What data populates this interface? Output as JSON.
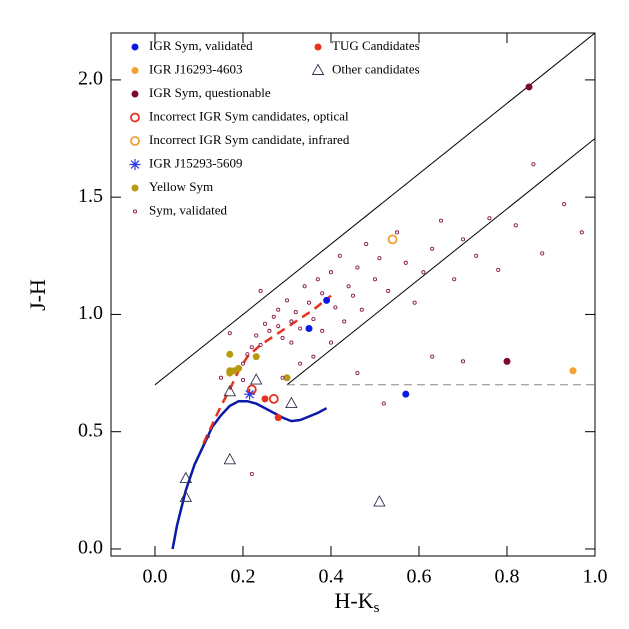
{
  "chart_data": {
    "type": "scatter",
    "x_label": "H-K",
    "x_label_subscript": "s",
    "y_label": "J-H",
    "xlim": [
      -0.1,
      1.0
    ],
    "ylim": [
      -0.03,
      2.2
    ],
    "xticks": [
      {
        "value": 0,
        "label": "0.0"
      },
      0.2,
      0.4,
      0.6,
      0.8,
      {
        "value": 1,
        "label": "1.0"
      }
    ],
    "yticks": [
      {
        "value": 0,
        "label": "0.0"
      },
      0.5,
      {
        "value": 1,
        "label": "1.0"
      },
      1.5,
      {
        "value": 2,
        "label": "2.0"
      }
    ],
    "reference_lines": [
      {
        "color": "#000000",
        "dash": false,
        "x": [
          0.0,
          1.0
        ],
        "y": [
          0.7,
          2.2
        ]
      },
      {
        "color": "#000000",
        "dash": false,
        "x": [
          0.3,
          1.0
        ],
        "y": [
          0.7,
          1.75
        ]
      },
      {
        "color": "#888888",
        "dash": true,
        "x": [
          0.3,
          1.0
        ],
        "y": [
          0.7,
          0.7
        ]
      }
    ],
    "curves": [
      {
        "color": "#0a1aa8",
        "dash": false,
        "x": [
          0.04,
          0.05,
          0.07,
          0.09,
          0.11,
          0.13,
          0.15,
          0.17,
          0.19,
          0.21,
          0.23,
          0.25,
          0.27,
          0.29,
          0.31,
          0.33,
          0.35,
          0.37,
          0.39
        ],
        "y": [
          0.0,
          0.1,
          0.25,
          0.36,
          0.44,
          0.52,
          0.57,
          0.61,
          0.63,
          0.63,
          0.62,
          0.6,
          0.58,
          0.56,
          0.545,
          0.55,
          0.565,
          0.58,
          0.6
        ]
      },
      {
        "color": "#e8321e",
        "dash": true,
        "x": [
          0.11,
          0.13,
          0.15,
          0.17,
          0.19,
          0.21,
          0.24,
          0.28,
          0.32,
          0.36,
          0.4
        ],
        "y": [
          0.45,
          0.53,
          0.61,
          0.68,
          0.76,
          0.82,
          0.87,
          0.92,
          0.97,
          1.02,
          1.08
        ]
      }
    ],
    "series": [
      {
        "name": "IGR Sym, validated",
        "color": "#0a1ae0",
        "marker": "dot",
        "x": [
          0.35,
          0.39,
          0.57
        ],
        "y": [
          0.94,
          1.06,
          0.66
        ]
      },
      {
        "name": "IGR J16293-4603",
        "color": "#f5a030",
        "marker": "dot",
        "x": [
          0.95
        ],
        "y": [
          0.76
        ]
      },
      {
        "name": "IGR Sym, questionable",
        "color": "#7a0a28",
        "marker": "dot",
        "x": [
          0.85,
          0.8
        ],
        "y": [
          1.97,
          0.8
        ]
      },
      {
        "name": "Incorrect IGR Sym candidates, optical",
        "color": "#e8321e",
        "marker": "ring",
        "x": [
          0.27,
          0.22
        ],
        "y": [
          0.64,
          0.68
        ]
      },
      {
        "name": "Incorrect IGR Sym candidate, infrared",
        "color": "#f0a030",
        "marker": "ring",
        "x": [
          0.54
        ],
        "y": [
          1.32
        ]
      },
      {
        "name": "IGR J15293-5609",
        "color": "#2a3ae0",
        "marker": "asterisk",
        "x": [
          0.215
        ],
        "y": [
          0.66
        ]
      },
      {
        "name": "Yellow Sym",
        "color": "#b89a10",
        "marker": "dot",
        "x": [
          0.17,
          0.17,
          0.17,
          0.18,
          0.23,
          0.3,
          0.19
        ],
        "y": [
          0.83,
          0.76,
          0.75,
          0.76,
          0.82,
          0.73,
          0.77
        ]
      },
      {
        "name": "Sym, validated",
        "color": "#8a1a50",
        "marker": "small-ring",
        "x": [
          0.17,
          0.2,
          0.21,
          0.22,
          0.23,
          0.24,
          0.25,
          0.26,
          0.27,
          0.28,
          0.28,
          0.29,
          0.3,
          0.31,
          0.31,
          0.32,
          0.33,
          0.34,
          0.35,
          0.36,
          0.37,
          0.38,
          0.38,
          0.4,
          0.41,
          0.42,
          0.43,
          0.44,
          0.45,
          0.46,
          0.47,
          0.48,
          0.5,
          0.51,
          0.53,
          0.55,
          0.57,
          0.59,
          0.61,
          0.63,
          0.65,
          0.68,
          0.7,
          0.73,
          0.76,
          0.78,
          0.82,
          0.86,
          0.88,
          0.93,
          0.97,
          0.2,
          0.15,
          0.52,
          0.46,
          0.63,
          0.7,
          0.22,
          0.12,
          0.4,
          0.36,
          0.33,
          0.24,
          0.29
        ],
        "y": [
          0.92,
          0.79,
          0.83,
          0.86,
          0.91,
          0.87,
          0.96,
          0.93,
          0.99,
          0.95,
          1.02,
          0.9,
          1.06,
          0.97,
          0.88,
          1.01,
          0.94,
          1.12,
          1.05,
          0.98,
          1.15,
          1.09,
          0.93,
          1.18,
          1.03,
          1.25,
          0.97,
          1.12,
          1.08,
          1.2,
          1.02,
          1.3,
          1.15,
          1.24,
          1.1,
          1.35,
          1.22,
          1.05,
          1.18,
          1.28,
          1.4,
          1.15,
          1.32,
          1.25,
          1.41,
          1.19,
          1.38,
          1.64,
          1.26,
          1.47,
          1.35,
          0.72,
          0.73,
          0.62,
          0.75,
          0.82,
          0.8,
          0.32,
          0.48,
          0.88,
          0.82,
          0.79,
          1.1,
          0.73
        ]
      },
      {
        "name": "TUG Candidates",
        "color": "#e8321e",
        "marker": "dot",
        "x": [
          0.25,
          0.28
        ],
        "y": [
          0.64,
          0.56
        ]
      },
      {
        "name": "Other candidates",
        "color": "#303050",
        "marker": "triangle",
        "x": [
          0.07,
          0.07,
          0.17,
          0.17,
          0.23,
          0.31,
          0.51
        ],
        "y": [
          0.3,
          0.22,
          0.38,
          0.67,
          0.72,
          0.62,
          0.2
        ]
      }
    ]
  }
}
